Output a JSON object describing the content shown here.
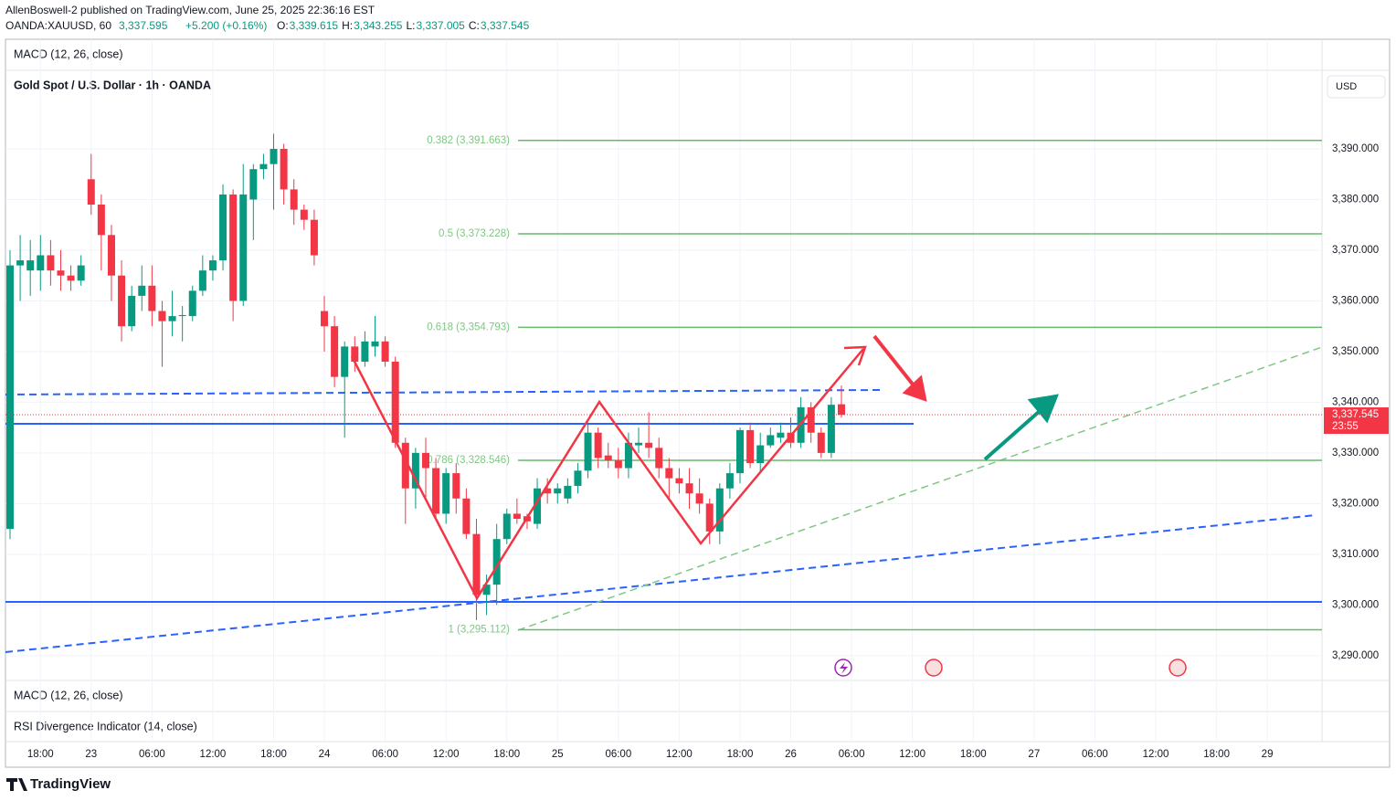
{
  "header": {
    "publisher": "AllenBoswell-2 published on TradingView.com, June 25, 2025 22:36:16 EST",
    "symbol": "OANDA:XAUUSD, 60",
    "price": "3,337.595",
    "change": "+5.200 (+0.16%)",
    "ohlc": [
      {
        "key": "O:",
        "value": "3,339.615"
      },
      {
        "key": "H:",
        "value": "3,343.255"
      },
      {
        "key": "L:",
        "value": "3,337.005"
      },
      {
        "key": "C:",
        "value": "3,337.545"
      }
    ]
  },
  "panes": {
    "top": "MACD (12, 26, close)",
    "macd": "MACD (12, 26, close)",
    "rsi": "RSI Divergence Indicator (14, close)"
  },
  "brand": "TradingView",
  "chart_data": {
    "type": "candlestick",
    "title": "Gold Spot / U.S. Dollar · 1h · OANDA",
    "currency": "USD",
    "x": [
      0,
      1,
      2,
      3,
      4,
      5,
      6,
      7,
      8,
      9,
      10,
      11,
      12,
      13,
      14,
      15,
      16,
      17,
      18,
      19,
      20,
      21,
      22,
      23,
      24,
      25,
      26,
      27,
      28,
      29,
      30,
      31,
      32,
      33,
      34,
      35,
      36,
      37,
      38,
      39,
      40,
      41,
      42,
      43,
      44,
      45,
      46,
      47,
      48,
      49,
      50,
      51,
      52,
      53,
      54,
      55,
      56,
      57,
      58,
      59,
      60,
      61,
      62,
      63,
      64,
      65,
      66,
      67,
      68,
      69,
      70,
      71,
      72,
      73,
      74,
      75,
      76,
      77,
      78,
      79,
      80,
      81,
      82
    ],
    "open": [
      3315,
      3367,
      3366,
      3366,
      3369,
      3366,
      3365,
      3364,
      3384,
      3379,
      3373,
      3365,
      3355,
      3361,
      3363,
      3358,
      3356,
      3357,
      3357,
      3362,
      3366,
      3368,
      3381,
      3360,
      3380,
      3386,
      3387,
      3390,
      3382,
      3378,
      3376,
      3358,
      3355,
      3345,
      3351,
      3348,
      3351,
      3352,
      3348,
      3332,
      3323,
      3330,
      3327,
      3318,
      3326,
      3321,
      3314,
      3302,
      3304,
      3313,
      3318,
      3317.5,
      3316,
      3323,
      3322,
      3321,
      3323.5,
      3326.5,
      3334,
      3329.5,
      3328.5,
      3327,
      3331.5,
      3332,
      3331,
      3327,
      3325,
      3324,
      3322,
      3320,
      3314.5,
      3323,
      3326,
      3334.5,
      3328,
      3331.5,
      3333,
      3334,
      3332,
      3339,
      3334,
      3330,
      3339.6
    ],
    "high": [
      3370,
      3373,
      3372,
      3373,
      3372,
      3370,
      3367,
      3369,
      3389,
      3381,
      3375,
      3368,
      3363,
      3367,
      3367,
      3360,
      3362,
      3359,
      3363,
      3369,
      3369,
      3383,
      3382,
      3387,
      3387,
      3389,
      3393,
      3391,
      3384,
      3379,
      3378,
      3361,
      3357,
      3352,
      3353,
      3354,
      3357,
      3353,
      3349,
      3333,
      3331,
      3333,
      3329,
      3327,
      3328,
      3323,
      3317,
      3306,
      3316,
      3319,
      3321,
      3318,
      3325,
      3325,
      3324,
      3325,
      3328,
      3336,
      3335,
      3332,
      3331,
      3334,
      3335,
      3338,
      3333,
      3329,
      3327,
      3327,
      3325,
      3321,
      3324,
      3328,
      3335,
      3336,
      3334,
      3335,
      3336,
      3337,
      3341,
      3340,
      3335,
      3341,
      3343.3
    ],
    "low": [
      3313,
      3360,
      3361,
      3362,
      3363,
      3362,
      3362,
      3363,
      3377,
      3366,
      3360,
      3352,
      3354,
      3358,
      3355,
      3347,
      3353,
      3352,
      3356,
      3361,
      3364,
      3366,
      3356,
      3359,
      3372,
      3384,
      3378,
      3379,
      3375,
      3374,
      3367,
      3350,
      3343,
      3333,
      3346,
      3347,
      3349,
      3347,
      3331,
      3316,
      3319,
      3321,
      3317,
      3316,
      3318,
      3313,
      3297,
      3298,
      3300,
      3312,
      3316,
      3315,
      3315,
      3320,
      3320,
      3320,
      3322,
      3325,
      3327,
      3327,
      3325,
      3325,
      3330,
      3329,
      3325,
      3321,
      3322,
      3319,
      3318,
      3312,
      3312,
      3321,
      3324,
      3327,
      3326,
      3331,
      3332,
      3331,
      3331,
      3332,
      3329,
      3329,
      3337
    ],
    "close": [
      3367,
      3368,
      3368,
      3369,
      3366,
      3365,
      3364,
      3367,
      3379,
      3373,
      3365,
      3355,
      3361,
      3363,
      3358,
      3356,
      3357,
      3357.2,
      3362,
      3366,
      3368,
      3381,
      3360,
      3381,
      3386,
      3387,
      3390,
      3382,
      3378,
      3376,
      3369,
      3355,
      3345,
      3351,
      3348,
      3352,
      3352,
      3348,
      3332,
      3323,
      3330,
      3327,
      3318,
      3326,
      3321,
      3314,
      3302,
      3304,
      3313,
      3318,
      3317,
      3316.5,
      3323,
      3322,
      3323,
      3323.5,
      3326.5,
      3334,
      3329,
      3328.5,
      3327,
      3332,
      3332,
      3331,
      3327,
      3325,
      3324,
      3322,
      3320,
      3314.5,
      3323,
      3326,
      3334.5,
      3328,
      3331.5,
      3333.5,
      3334,
      3332,
      3339,
      3334,
      3330,
      3339.5,
      3337.5
    ],
    "up_color": "#089981",
    "down_color": "#f23645",
    "xlim": [
      -0.45,
      129.4
    ],
    "xticks": [
      {
        "value": 3,
        "label": "18:00"
      },
      {
        "value": 8,
        "label": "23"
      },
      {
        "value": 14,
        "label": "06:00"
      },
      {
        "value": 20,
        "label": "12:00"
      },
      {
        "value": 26,
        "label": "18:00"
      },
      {
        "value": 31,
        "label": "24"
      },
      {
        "value": 37,
        "label": "06:00"
      },
      {
        "value": 43,
        "label": "12:00"
      },
      {
        "value": 49,
        "label": "18:00"
      },
      {
        "value": 54,
        "label": "25"
      },
      {
        "value": 60,
        "label": "06:00"
      },
      {
        "value": 66,
        "label": "12:00"
      },
      {
        "value": 72,
        "label": "18:00"
      },
      {
        "value": 77,
        "label": "26"
      },
      {
        "value": 83,
        "label": "06:00"
      },
      {
        "value": 89,
        "label": "12:00"
      },
      {
        "value": 95,
        "label": "18:00"
      },
      {
        "value": 101,
        "label": "27"
      },
      {
        "value": 107,
        "label": "06:00"
      },
      {
        "value": 113,
        "label": "12:00"
      },
      {
        "value": 119,
        "label": "18:00"
      },
      {
        "value": 124,
        "label": "29"
      }
    ],
    "ylim": [
      3285.1,
      3405.5
    ],
    "yticks": [
      {
        "value": 3290,
        "label": "3,290.000"
      },
      {
        "value": 3300,
        "label": "3,300.000"
      },
      {
        "value": 3310,
        "label": "3,310.000"
      },
      {
        "value": 3320,
        "label": "3,320.000"
      },
      {
        "value": 3330,
        "label": "3,330.000"
      },
      {
        "value": 3340,
        "label": "3,340.000"
      },
      {
        "value": 3350,
        "label": "3,350.000"
      },
      {
        "value": 3360,
        "label": "3,360.000"
      },
      {
        "value": 3370,
        "label": "3,370.000"
      },
      {
        "value": 3380,
        "label": "3,380.000"
      },
      {
        "value": 3390,
        "label": "3,390.000"
      }
    ],
    "grid": true,
    "fib_levels": [
      {
        "value": 3391.663,
        "label": "0.382 (3,391.663)"
      },
      {
        "value": 3373.228,
        "label": "0.5 (3,373.228)"
      },
      {
        "value": 3354.793,
        "label": "0.618 (3,354.793)"
      },
      {
        "value": 3328.546,
        "label": "0.786 (3,328.546)"
      },
      {
        "value": 3295.112,
        "label": "1 (3,295.112)"
      }
    ],
    "fib_color": "#66bb6a",
    "last_price": {
      "value": 3337.545,
      "label": "3,337.545"
    },
    "countdown": "23:55"
  }
}
